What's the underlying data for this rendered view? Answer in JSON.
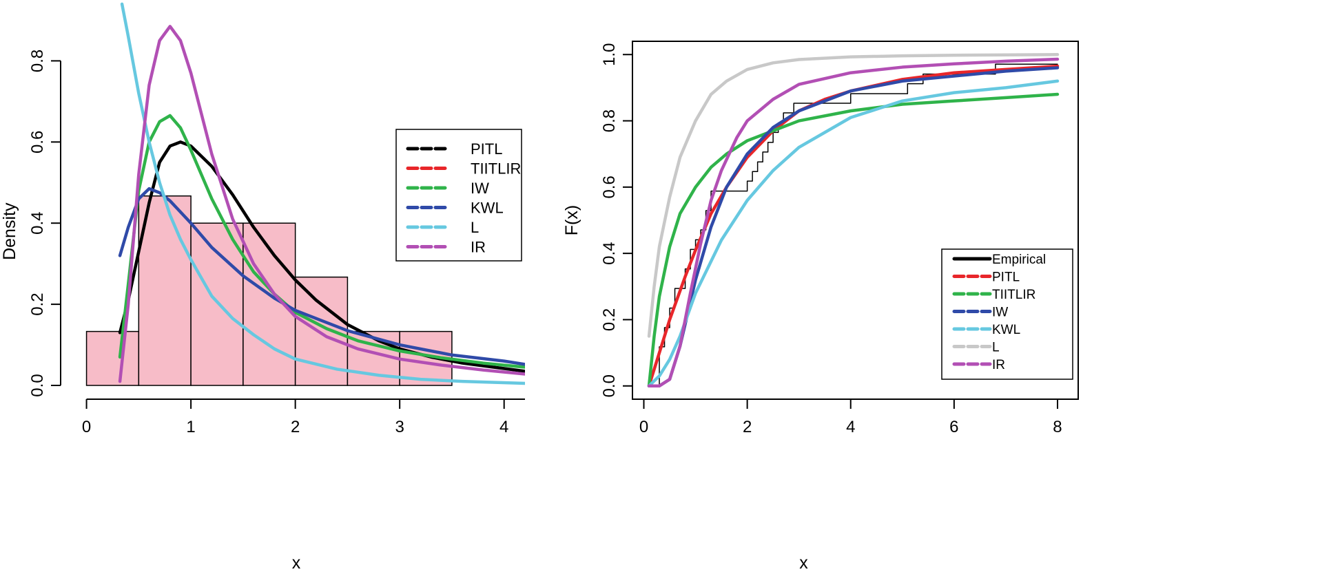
{
  "chart_data": [
    {
      "type": "histogram-density",
      "xlabel": "x",
      "ylabel": "Density",
      "xlim": [
        -0.05,
        4.2
      ],
      "ylim": [
        0,
        0.95
      ],
      "xticks": [
        "0",
        "1",
        "2",
        "3",
        "4"
      ],
      "yticks": [
        "0.0",
        "0.2",
        "0.4",
        "0.6",
        "0.8"
      ],
      "histogram": {
        "color": "#f7bcc8",
        "bins": [
          {
            "x0": 0.0,
            "x1": 0.5,
            "density": 0.133
          },
          {
            "x0": 0.5,
            "x1": 1.0,
            "density": 0.467
          },
          {
            "x0": 1.0,
            "x1": 1.5,
            "density": 0.4
          },
          {
            "x0": 1.5,
            "x1": 2.0,
            "density": 0.4
          },
          {
            "x0": 2.0,
            "x1": 2.5,
            "density": 0.267
          },
          {
            "x0": 2.5,
            "x1": 3.0,
            "density": 0.133
          },
          {
            "x0": 3.0,
            "x1": 3.5,
            "density": 0.133
          }
        ]
      },
      "legend": {
        "position": "right"
      },
      "series": [
        {
          "name": "PITL",
          "color": "#000000",
          "x": [
            0.32,
            0.4,
            0.5,
            0.6,
            0.7,
            0.8,
            0.9,
            1.0,
            1.2,
            1.4,
            1.6,
            1.8,
            2.0,
            2.2,
            2.5,
            2.8,
            3.0,
            3.3,
            3.6,
            3.9,
            4.2
          ],
          "y": [
            0.13,
            0.21,
            0.33,
            0.45,
            0.55,
            0.59,
            0.6,
            0.59,
            0.54,
            0.47,
            0.39,
            0.32,
            0.26,
            0.21,
            0.15,
            0.11,
            0.09,
            0.07,
            0.055,
            0.045,
            0.035
          ]
        },
        {
          "name": "TIITLIR",
          "color": "#e8262a",
          "x": [],
          "y": []
        },
        {
          "name": "IW",
          "color": "#2fb34a",
          "x": [
            0.32,
            0.4,
            0.5,
            0.6,
            0.7,
            0.8,
            0.9,
            1.0,
            1.2,
            1.4,
            1.6,
            1.8,
            2.0,
            2.3,
            2.6,
            3.0,
            3.4,
            3.8,
            4.2
          ],
          "y": [
            0.07,
            0.25,
            0.48,
            0.6,
            0.65,
            0.665,
            0.635,
            0.58,
            0.46,
            0.36,
            0.28,
            0.225,
            0.18,
            0.14,
            0.11,
            0.085,
            0.068,
            0.055,
            0.045
          ]
        },
        {
          "name": "KWL",
          "color": "#2f4aa8",
          "x": [
            0.32,
            0.4,
            0.5,
            0.6,
            0.7,
            0.8,
            1.0,
            1.2,
            1.5,
            1.8,
            2.0,
            2.5,
            3.0,
            3.5,
            4.0,
            4.2
          ],
          "y": [
            0.32,
            0.39,
            0.46,
            0.485,
            0.475,
            0.455,
            0.4,
            0.34,
            0.27,
            0.215,
            0.185,
            0.135,
            0.1,
            0.075,
            0.06,
            0.052
          ]
        },
        {
          "name": "L",
          "color": "#66c8e0",
          "x": [
            0.34,
            0.4,
            0.5,
            0.6,
            0.7,
            0.8,
            0.9,
            1.0,
            1.2,
            1.4,
            1.6,
            1.8,
            2.0,
            2.4,
            2.8,
            3.2,
            3.6,
            4.2
          ],
          "y": [
            0.94,
            0.86,
            0.72,
            0.6,
            0.5,
            0.42,
            0.36,
            0.31,
            0.22,
            0.165,
            0.125,
            0.09,
            0.065,
            0.04,
            0.025,
            0.015,
            0.01,
            0.005
          ]
        },
        {
          "name": "IR",
          "color": "#b24fb4",
          "x": [
            0.32,
            0.4,
            0.5,
            0.6,
            0.7,
            0.8,
            0.9,
            1.0,
            1.1,
            1.2,
            1.4,
            1.6,
            1.8,
            2.0,
            2.3,
            2.6,
            3.0,
            3.4,
            3.8,
            4.2
          ],
          "y": [
            0.01,
            0.2,
            0.52,
            0.74,
            0.85,
            0.885,
            0.85,
            0.77,
            0.67,
            0.57,
            0.41,
            0.3,
            0.225,
            0.17,
            0.12,
            0.09,
            0.065,
            0.05,
            0.038,
            0.028
          ]
        }
      ]
    },
    {
      "type": "line",
      "xlabel": "x",
      "ylabel": "F(x)",
      "xlim": [
        -0.22,
        8.4
      ],
      "ylim": [
        -0.04,
        1.04
      ],
      "xticks": [
        "0",
        "2",
        "4",
        "6",
        "8"
      ],
      "yticks": [
        "0.0",
        "0.2",
        "0.4",
        "0.6",
        "0.8",
        "1.0"
      ],
      "legend": {
        "position": "bottom-right"
      },
      "series": [
        {
          "name": "Empirical",
          "color": "#000000",
          "step": true,
          "x": [
            0.1,
            0.3,
            0.4,
            0.5,
            0.6,
            0.8,
            0.9,
            1.0,
            1.1,
            1.2,
            1.3,
            2.0,
            2.1,
            2.2,
            2.3,
            2.4,
            2.5,
            2.6,
            2.7,
            2.9,
            3.1,
            3.3,
            4.0,
            5.1,
            5.4,
            6.4,
            6.8,
            8.0
          ],
          "y": [
            0.0,
            0.118,
            0.176,
            0.235,
            0.294,
            0.353,
            0.412,
            0.441,
            0.471,
            0.529,
            0.588,
            0.618,
            0.647,
            0.676,
            0.706,
            0.735,
            0.765,
            0.794,
            0.824,
            0.853,
            0.853,
            0.853,
            0.882,
            0.912,
            0.941,
            0.941,
            0.971,
            0.971
          ]
        },
        {
          "name": "PITL",
          "color": "#e8262a",
          "x": [
            0.1,
            0.3,
            0.5,
            0.8,
            1.0,
            1.3,
            1.6,
            2.0,
            2.5,
            3.0,
            3.5,
            4.0,
            5.0,
            6.0,
            7.0,
            8.0
          ],
          "y": [
            0.0,
            0.1,
            0.2,
            0.33,
            0.41,
            0.52,
            0.6,
            0.69,
            0.77,
            0.83,
            0.865,
            0.89,
            0.925,
            0.945,
            0.955,
            0.965
          ]
        },
        {
          "name": "TIITLIR",
          "color": "#2fb34a",
          "x": [
            0.1,
            0.2,
            0.3,
            0.5,
            0.7,
            1.0,
            1.3,
            1.6,
            2.0,
            2.5,
            3.0,
            4.0,
            5.0,
            6.0,
            7.0,
            8.0
          ],
          "y": [
            0.0,
            0.15,
            0.27,
            0.42,
            0.52,
            0.6,
            0.66,
            0.7,
            0.74,
            0.77,
            0.8,
            0.83,
            0.85,
            0.86,
            0.87,
            0.88
          ]
        },
        {
          "name": "IW",
          "color": "#2f4aa8",
          "x": [
            0.1,
            0.3,
            0.5,
            0.7,
            1.0,
            1.3,
            1.6,
            2.0,
            2.5,
            3.0,
            4.0,
            5.0,
            6.0,
            7.0,
            8.0
          ],
          "y": [
            0.0,
            0.0,
            0.02,
            0.12,
            0.32,
            0.48,
            0.6,
            0.7,
            0.78,
            0.83,
            0.89,
            0.92,
            0.935,
            0.95,
            0.96
          ]
        },
        {
          "name": "KWL",
          "color": "#66c8e0",
          "x": [
            0.1,
            0.3,
            0.5,
            0.7,
            1.0,
            1.5,
            2.0,
            2.5,
            3.0,
            4.0,
            5.0,
            6.0,
            7.0,
            8.0
          ],
          "y": [
            0.0,
            0.03,
            0.08,
            0.15,
            0.28,
            0.44,
            0.56,
            0.65,
            0.72,
            0.81,
            0.86,
            0.885,
            0.9,
            0.92
          ]
        },
        {
          "name": "L",
          "color": "#c8c8c8",
          "x": [
            0.1,
            0.2,
            0.3,
            0.5,
            0.7,
            1.0,
            1.3,
            1.6,
            2.0,
            2.5,
            3.0,
            4.0,
            5.0,
            6.0,
            8.0
          ],
          "y": [
            0.15,
            0.3,
            0.42,
            0.57,
            0.69,
            0.8,
            0.88,
            0.92,
            0.955,
            0.975,
            0.985,
            0.993,
            0.996,
            0.998,
            1.0
          ]
        },
        {
          "name": "IR",
          "color": "#b24fb4",
          "x": [
            0.1,
            0.3,
            0.5,
            0.7,
            0.9,
            1.1,
            1.3,
            1.5,
            1.8,
            2.0,
            2.5,
            3.0,
            4.0,
            5.0,
            6.0,
            7.0,
            8.0
          ],
          "y": [
            0.0,
            0.0,
            0.02,
            0.12,
            0.28,
            0.43,
            0.56,
            0.65,
            0.75,
            0.8,
            0.865,
            0.91,
            0.945,
            0.962,
            0.972,
            0.98,
            0.986
          ]
        }
      ]
    }
  ]
}
